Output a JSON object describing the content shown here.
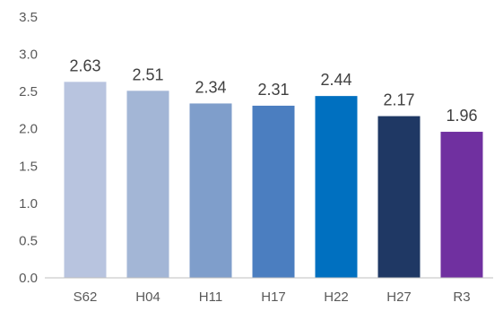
{
  "chart_data": {
    "type": "bar",
    "title": "",
    "xlabel": "",
    "ylabel": "",
    "categories": [
      "S62",
      "H04",
      "H11",
      "H17",
      "H22",
      "H27",
      "R3"
    ],
    "values": [
      2.63,
      2.51,
      2.34,
      2.31,
      2.44,
      2.17,
      1.96
    ],
    "value_labels": [
      "2.63",
      "2.51",
      "2.34",
      "2.31",
      "2.44",
      "2.17",
      "1.96"
    ],
    "colors": [
      "#b8c4df",
      "#a3b6d6",
      "#7f9ecb",
      "#4b7ec0",
      "#0070c0",
      "#1f3864",
      "#7030a0"
    ],
    "ylim": [
      0,
      3.5
    ],
    "yticks": [
      "0.0",
      "0.5",
      "1.0",
      "1.5",
      "2.0",
      "2.5",
      "3.0",
      "3.5"
    ],
    "ytick_values": [
      0,
      0.5,
      1,
      1.5,
      2,
      2.5,
      3,
      3.5
    ],
    "grid": false,
    "legend": "none"
  }
}
